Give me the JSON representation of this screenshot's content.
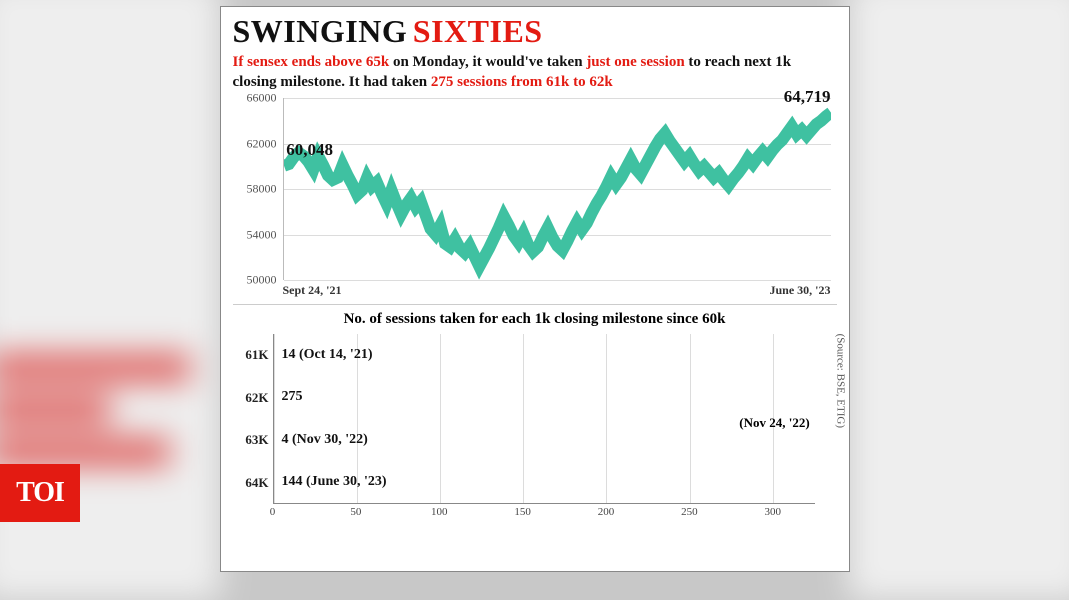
{
  "title": {
    "part1": "SWINGING",
    "part2": "SIXTIES",
    "color1": "#111111",
    "color2": "#e31b12",
    "fontsize": 32
  },
  "subtitle": {
    "seg1": "If sensex ends above 65k",
    "seg2": " on Monday, it would've taken ",
    "seg3": "just one session",
    "seg4": " to reach next 1k closing milestone.  It had taken ",
    "seg5": "275 sessions from 61k to 62k",
    "black": "#111111",
    "red": "#e31b12",
    "fontsize": 15
  },
  "line_chart": {
    "type": "line",
    "ylim": [
      50000,
      66000
    ],
    "yticks": [
      50000,
      54000,
      58000,
      62000,
      66000
    ],
    "line_color": "#3fc1a1",
    "line_width": 2,
    "grid_color": "#dcdcdc",
    "background_color": "#ffffff",
    "x_start_label": "Sept 24, '21",
    "x_end_label": "June 30, '23",
    "start_callout": "60,048",
    "end_callout": "64,719",
    "series": [
      60048,
      60200,
      60800,
      61200,
      60900,
      60400,
      59700,
      60900,
      60100,
      59200,
      58800,
      59000,
      60100,
      59200,
      58400,
      57500,
      57900,
      59000,
      58200,
      58600,
      57600,
      56700,
      57900,
      56800,
      55800,
      56600,
      57200,
      56400,
      56900,
      55700,
      54500,
      54000,
      54800,
      53200,
      52900,
      53600,
      52800,
      52400,
      53000,
      52100,
      51200,
      52000,
      52800,
      53700,
      54600,
      55600,
      54800,
      53900,
      53300,
      54100,
      53100,
      52500,
      52900,
      53800,
      54600,
      53700,
      53000,
      52600,
      53400,
      54300,
      55100,
      54400,
      55000,
      55900,
      56700,
      57400,
      58200,
      59100,
      58400,
      59000,
      59800,
      60600,
      59800,
      59300,
      60100,
      60900,
      61700,
      62400,
      62900,
      62200,
      61600,
      61000,
      60400,
      60900,
      60200,
      59600,
      60000,
      59500,
      59000,
      59400,
      58800,
      58300,
      58900,
      59400,
      60000,
      60700,
      60200,
      60800,
      61300,
      60800,
      61400,
      61900,
      62300,
      62900,
      63500,
      62800,
      63200,
      62700,
      63200,
      63700,
      64000,
      64400,
      64719
    ]
  },
  "bar_chart": {
    "type": "bar",
    "title": "No. of sessions taken for each 1k closing milestone since 60k",
    "xlim": [
      0,
      325
    ],
    "xticks": [
      0,
      50,
      100,
      150,
      200,
      250,
      300
    ],
    "bar_color": "#e72e2b",
    "grid_color": "#dcdcdc",
    "text_color": "#111111",
    "bars": [
      {
        "cat": "61K",
        "value": 14,
        "label": "14 (Oct 14, '21)",
        "sub": ""
      },
      {
        "cat": "62K",
        "value": 275,
        "label": "275",
        "sub": "(Nov 24, '22)"
      },
      {
        "cat": "63K",
        "value": 4,
        "label": "4 (Nov 30, '22)",
        "sub": ""
      },
      {
        "cat": "64K",
        "value": 144,
        "label": "144  (June 30, '23)",
        "sub": ""
      }
    ]
  },
  "source": "(Source: BSE, ETIG)",
  "badge": "TOI"
}
